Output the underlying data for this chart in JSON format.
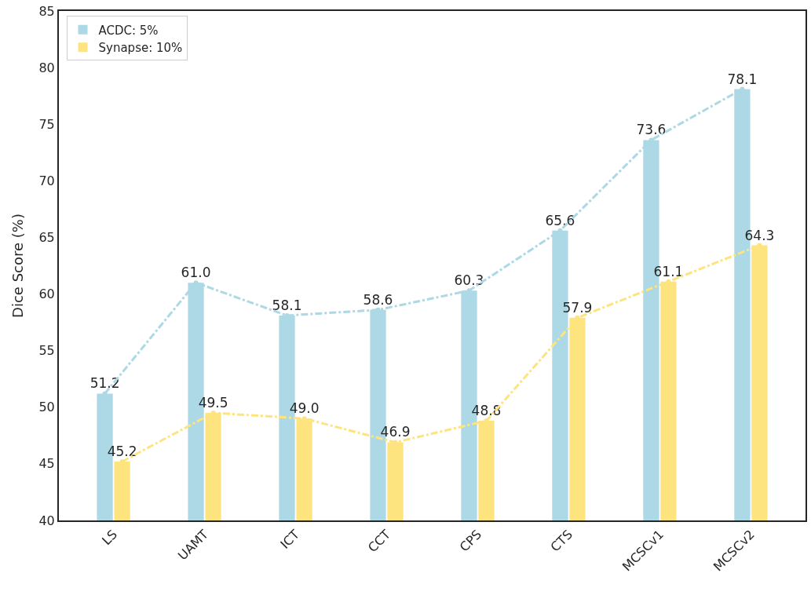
{
  "chart_data": {
    "type": "bar",
    "categories": [
      "LS",
      "UAMT",
      "ICT",
      "CCT",
      "CPS",
      "CTS",
      "MCSCv1",
      "MCSCv2"
    ],
    "ylabel": "Dice Score (%)",
    "ylim": [
      40,
      85
    ],
    "yticks": [
      40,
      45,
      50,
      55,
      60,
      65,
      70,
      75,
      80,
      85
    ],
    "series": [
      {
        "name": "ACDC: 5%",
        "color": "#add8e6",
        "values": [
          51.2,
          61.0,
          58.1,
          58.6,
          60.3,
          65.6,
          73.6,
          78.1
        ],
        "value_labels": [
          "51.2",
          "61.0",
          "58.1",
          "58.6",
          "60.3",
          "65.6",
          "73.6",
          "78.1"
        ]
      },
      {
        "name": "Synapse: 10%",
        "color": "#fde47f",
        "values": [
          45.2,
          49.5,
          49.0,
          46.9,
          48.8,
          57.9,
          61.1,
          64.3
        ],
        "value_labels": [
          "45.2",
          "49.5",
          "49.0",
          "46.9",
          "48.8",
          "57.9",
          "61.1",
          "64.3"
        ]
      },
      {
        "type": "line",
        "color": "#add8e6",
        "values": [
          51.2,
          61.0,
          58.1,
          58.6,
          60.3,
          65.6,
          73.6,
          78.1
        ],
        "marker": "circle",
        "line_style": "dashed"
      },
      {
        "type": "line",
        "color": "#fde47f",
        "values": [
          45.2,
          49.5,
          49.0,
          46.9,
          48.8,
          57.9,
          61.1,
          64.3
        ],
        "marker": "circle",
        "line_style": "dashed"
      }
    ],
    "legend": "top left"
  }
}
